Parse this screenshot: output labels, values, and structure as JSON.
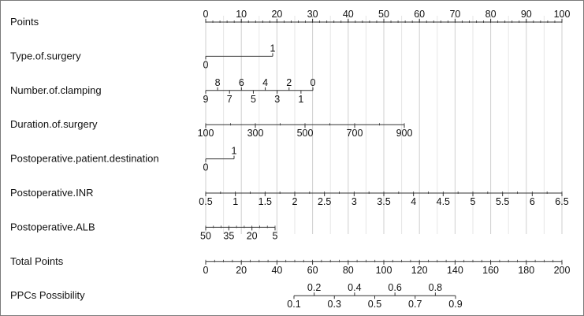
{
  "chart_data": {
    "type": "nomogram",
    "grid": true,
    "rows": [
      {
        "id": "points",
        "label": "Points",
        "range": [
          0,
          100
        ],
        "minor_step": 2,
        "ticks": [
          {
            "v": 0,
            "t": "0",
            "pos": "top"
          },
          {
            "v": 10,
            "t": "10",
            "pos": "top"
          },
          {
            "v": 20,
            "t": "20",
            "pos": "top"
          },
          {
            "v": 30,
            "t": "30",
            "pos": "top"
          },
          {
            "v": 40,
            "t": "40",
            "pos": "top"
          },
          {
            "v": 50,
            "t": "50",
            "pos": "top"
          },
          {
            "v": 60,
            "t": "60",
            "pos": "top"
          },
          {
            "v": 70,
            "t": "70",
            "pos": "top"
          },
          {
            "v": 80,
            "t": "80",
            "pos": "top"
          },
          {
            "v": 90,
            "t": "90",
            "pos": "top"
          },
          {
            "v": 100,
            "t": "100",
            "pos": "top"
          }
        ]
      },
      {
        "id": "type_of_surgery",
        "label": "Type.of.surgery",
        "range": [
          0,
          1
        ],
        "ticks": [
          {
            "v": 0,
            "t": "0",
            "pos": "bottom"
          },
          {
            "v": 1,
            "t": "1",
            "pos": "top"
          }
        ]
      },
      {
        "id": "number_of_clamping",
        "label": "Number.of.clamping",
        "range": [
          9,
          0
        ],
        "ticks": [
          {
            "v": 9,
            "t": "9",
            "pos": "bottom"
          },
          {
            "v": 8,
            "t": "8",
            "pos": "top"
          },
          {
            "v": 7,
            "t": "7",
            "pos": "bottom"
          },
          {
            "v": 6,
            "t": "6",
            "pos": "top"
          },
          {
            "v": 5,
            "t": "5",
            "pos": "bottom"
          },
          {
            "v": 4,
            "t": "4",
            "pos": "top"
          },
          {
            "v": 3,
            "t": "3",
            "pos": "bottom"
          },
          {
            "v": 2,
            "t": "2",
            "pos": "top"
          },
          {
            "v": 1,
            "t": "1",
            "pos": "bottom"
          },
          {
            "v": 0,
            "t": "0",
            "pos": "top"
          }
        ]
      },
      {
        "id": "duration_of_surgery",
        "label": "Duration.of.surgery",
        "range": [
          100,
          900
        ],
        "minor_step": 100,
        "ticks": [
          {
            "v": 100,
            "t": "100",
            "pos": "bottom"
          },
          {
            "v": 300,
            "t": "300",
            "pos": "bottom"
          },
          {
            "v": 500,
            "t": "500",
            "pos": "bottom"
          },
          {
            "v": 700,
            "t": "700",
            "pos": "bottom"
          },
          {
            "v": 900,
            "t": "900",
            "pos": "bottom"
          }
        ]
      },
      {
        "id": "postoperative_patient_destination",
        "label": "Postoperative.patient.destination",
        "range": [
          0,
          1
        ],
        "ticks": [
          {
            "v": 0,
            "t": "0",
            "pos": "bottom"
          },
          {
            "v": 1,
            "t": "1",
            "pos": "top"
          }
        ]
      },
      {
        "id": "postoperative_inr",
        "label": "Postoperative.INR",
        "range": [
          0.5,
          6.5
        ],
        "minor_step": 0.25,
        "ticks": [
          {
            "v": 0.5,
            "t": "0.5",
            "pos": "bottom"
          },
          {
            "v": 1,
            "t": "1",
            "pos": "bottom"
          },
          {
            "v": 1.5,
            "t": "1.5",
            "pos": "bottom"
          },
          {
            "v": 2,
            "t": "2",
            "pos": "bottom"
          },
          {
            "v": 2.5,
            "t": "2.5",
            "pos": "bottom"
          },
          {
            "v": 3,
            "t": "3",
            "pos": "bottom"
          },
          {
            "v": 3.5,
            "t": "3.5",
            "pos": "bottom"
          },
          {
            "v": 4,
            "t": "4",
            "pos": "bottom"
          },
          {
            "v": 4.5,
            "t": "4.5",
            "pos": "bottom"
          },
          {
            "v": 5,
            "t": "5",
            "pos": "bottom"
          },
          {
            "v": 5.5,
            "t": "5.5",
            "pos": "bottom"
          },
          {
            "v": 6,
            "t": "6",
            "pos": "bottom"
          },
          {
            "v": 6.5,
            "t": "6.5",
            "pos": "bottom"
          }
        ]
      },
      {
        "id": "postoperative_alb",
        "label": "Postoperative.ALB",
        "range": [
          50,
          5
        ],
        "minor_step": 5,
        "ticks": [
          {
            "v": 50,
            "t": "50",
            "pos": "bottom"
          },
          {
            "v": 35,
            "t": "35",
            "pos": "bottom"
          },
          {
            "v": 20,
            "t": "20",
            "pos": "bottom"
          },
          {
            "v": 5,
            "t": "5",
            "pos": "bottom"
          }
        ]
      },
      {
        "id": "total_points",
        "label": "Total Points",
        "range": [
          0,
          200
        ],
        "minor_step": 5,
        "ticks": [
          {
            "v": 0,
            "t": "0",
            "pos": "bottom"
          },
          {
            "v": 20,
            "t": "20",
            "pos": "bottom"
          },
          {
            "v": 40,
            "t": "40",
            "pos": "bottom"
          },
          {
            "v": 60,
            "t": "60",
            "pos": "bottom"
          },
          {
            "v": 80,
            "t": "80",
            "pos": "bottom"
          },
          {
            "v": 100,
            "t": "100",
            "pos": "bottom"
          },
          {
            "v": 120,
            "t": "120",
            "pos": "bottom"
          },
          {
            "v": 140,
            "t": "140",
            "pos": "bottom"
          },
          {
            "v": 160,
            "t": "160",
            "pos": "bottom"
          },
          {
            "v": 180,
            "t": "180",
            "pos": "bottom"
          },
          {
            "v": 200,
            "t": "200",
            "pos": "bottom"
          }
        ]
      },
      {
        "id": "ppcs_possibility",
        "label": "PPCs Possibility",
        "range": [
          0.1,
          0.9
        ],
        "ticks": [
          {
            "v": 0.1,
            "t": "0.1",
            "pos": "bottom"
          },
          {
            "v": 0.2,
            "t": "0.2",
            "pos": "top"
          },
          {
            "v": 0.3,
            "t": "0.3",
            "pos": "bottom"
          },
          {
            "v": 0.4,
            "t": "0.4",
            "pos": "top"
          },
          {
            "v": 0.5,
            "t": "0.5",
            "pos": "bottom"
          },
          {
            "v": 0.6,
            "t": "0.6",
            "pos": "top"
          },
          {
            "v": 0.7,
            "t": "0.7",
            "pos": "bottom"
          },
          {
            "v": 0.8,
            "t": "0.8",
            "pos": "top"
          },
          {
            "v": 0.9,
            "t": "0.9",
            "pos": "bottom"
          }
        ]
      }
    ]
  }
}
